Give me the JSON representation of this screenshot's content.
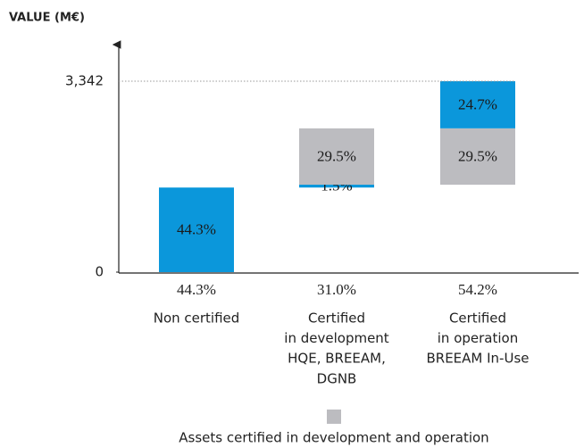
{
  "chart_data": {
    "type": "waterfall",
    "y_axis_label": "VALUE (M€)",
    "ylim": [
      0,
      100
    ],
    "yticks": [
      0,
      {
        "value": 100,
        "label": "3,342"
      }
    ],
    "categories": [
      [
        "Non certified"
      ],
      [
        "Certified",
        "in development",
        "HQE, BREEAM,",
        "DGNB"
      ],
      [
        "Certified",
        "in operation",
        "BREEAM In-Use"
      ]
    ],
    "totals": [
      44.3,
      31.0,
      54.2
    ],
    "value_labels": [
      "44.3%",
      "31.0%",
      "54.2%"
    ],
    "bars": [
      {
        "segments": [
          {
            "value": 44.3,
            "value_label": "44.3%",
            "color": "#0b97db",
            "shared": false
          }
        ]
      },
      {
        "segments": [
          {
            "value": 1.5,
            "value_label": "1.5%",
            "color": "#0b97db",
            "shared": false
          },
          {
            "value": 29.5,
            "value_label": "29.5%",
            "color": "#bcbcc0",
            "shared": true
          }
        ]
      },
      {
        "segments": [
          {
            "value": 29.5,
            "value_label": "29.5%",
            "color": "#bcbcc0",
            "shared": true
          },
          {
            "value": 24.7,
            "value_label": "24.7%",
            "color": "#0b97db",
            "shared": false
          }
        ]
      }
    ],
    "legend": {
      "label": "Assets certified in development and operation",
      "color": "#bcbcc0"
    }
  }
}
